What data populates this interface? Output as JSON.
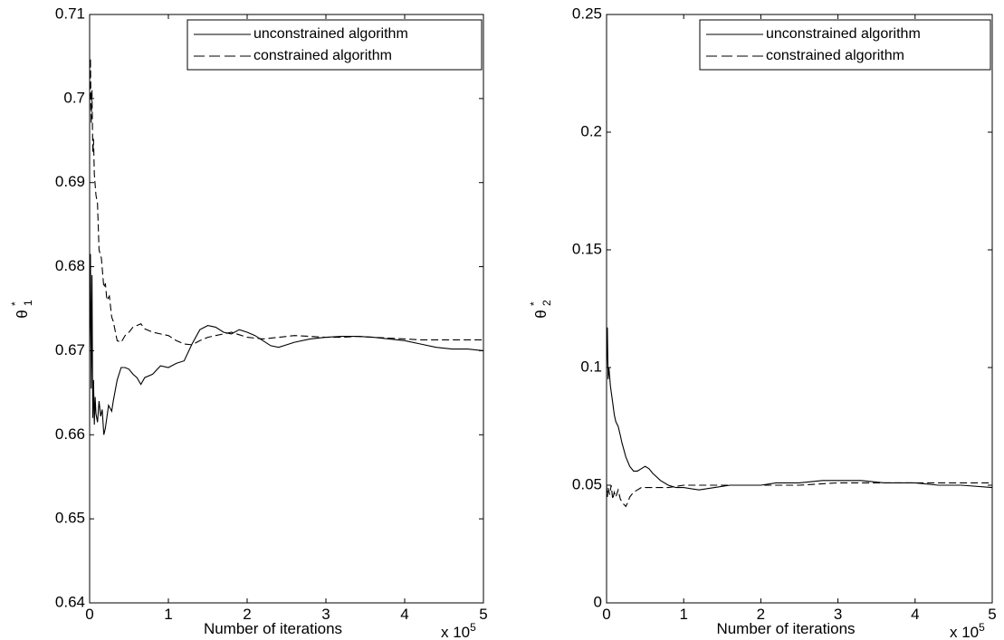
{
  "chart_data": [
    {
      "type": "line",
      "ylabel": "θ₁*",
      "ylabel_main": "θ",
      "ylabel_sub": "1",
      "ylabel_sup": "*",
      "xlabel": "Number of iterations",
      "x_multiplier": "x 10",
      "x_multiplier_exp": "5",
      "xlim": [
        0,
        5
      ],
      "ylim": [
        0.64,
        0.71
      ],
      "xticks": [
        "0",
        "1",
        "2",
        "3",
        "4",
        "5"
      ],
      "yticks": [
        "0.64",
        "0.65",
        "0.66",
        "0.67",
        "0.68",
        "0.69",
        "0.7",
        "0.71"
      ],
      "grid": false,
      "legend_position": "top-right",
      "series": [
        {
          "name": "unconstrained algorithm",
          "style": "solid",
          "x": [
            0,
            0.01,
            0.02,
            0.03,
            0.04,
            0.05,
            0.06,
            0.07,
            0.08,
            0.1,
            0.12,
            0.14,
            0.16,
            0.18,
            0.2,
            0.24,
            0.28,
            0.3,
            0.35,
            0.4,
            0.45,
            0.5,
            0.55,
            0.6,
            0.65,
            0.7,
            0.8,
            0.9,
            1.0,
            1.1,
            1.2,
            1.3,
            1.4,
            1.5,
            1.6,
            1.7,
            1.8,
            1.9,
            2.0,
            2.1,
            2.2,
            2.3,
            2.4,
            2.6,
            2.8,
            3.0,
            3.2,
            3.4,
            3.6,
            3.8,
            4.0,
            4.2,
            4.4,
            4.6,
            4.8,
            5.0
          ],
          "values": [
            0.6705,
            0.6815,
            0.6655,
            0.679,
            0.662,
            0.6665,
            0.6612,
            0.6645,
            0.6625,
            0.6615,
            0.664,
            0.6622,
            0.663,
            0.66,
            0.6608,
            0.6635,
            0.6628,
            0.664,
            0.6665,
            0.668,
            0.668,
            0.6678,
            0.6672,
            0.6668,
            0.666,
            0.6668,
            0.6672,
            0.6682,
            0.668,
            0.6685,
            0.6688,
            0.6708,
            0.6725,
            0.673,
            0.6728,
            0.6722,
            0.672,
            0.6725,
            0.6722,
            0.6718,
            0.6712,
            0.6706,
            0.6704,
            0.671,
            0.6714,
            0.6716,
            0.6717,
            0.6717,
            0.6716,
            0.6714,
            0.6712,
            0.6708,
            0.6704,
            0.6702,
            0.6702,
            0.67
          ]
        },
        {
          "name": "constrained algorithm",
          "style": "dashed",
          "x": [
            0,
            0.01,
            0.02,
            0.03,
            0.04,
            0.05,
            0.06,
            0.08,
            0.1,
            0.12,
            0.15,
            0.18,
            0.2,
            0.22,
            0.25,
            0.28,
            0.3,
            0.35,
            0.4,
            0.45,
            0.5,
            0.55,
            0.6,
            0.65,
            0.7,
            0.8,
            0.9,
            1.0,
            1.1,
            1.2,
            1.3,
            1.4,
            1.5,
            1.6,
            1.7,
            1.8,
            1.9,
            2.0,
            2.2,
            2.4,
            2.6,
            2.8,
            3.0,
            3.2,
            3.4,
            3.6,
            3.8,
            4.0,
            4.2,
            4.4,
            4.6,
            4.8,
            5.0
          ],
          "values": [
            0.6985,
            0.7048,
            0.697,
            0.701,
            0.6935,
            0.6952,
            0.691,
            0.6885,
            0.6875,
            0.682,
            0.681,
            0.6775,
            0.678,
            0.676,
            0.6765,
            0.674,
            0.6735,
            0.6712,
            0.671,
            0.6718,
            0.6722,
            0.6728,
            0.673,
            0.6732,
            0.6726,
            0.6722,
            0.672,
            0.6718,
            0.6712,
            0.6708,
            0.6707,
            0.6712,
            0.6716,
            0.6718,
            0.672,
            0.6722,
            0.6719,
            0.6716,
            0.6714,
            0.6716,
            0.6718,
            0.6717,
            0.6716,
            0.6716,
            0.6717,
            0.6716,
            0.6715,
            0.6714,
            0.6713,
            0.6713,
            0.6713,
            0.6713,
            0.6713
          ]
        }
      ]
    },
    {
      "type": "line",
      "ylabel": "θ₂*",
      "ylabel_main": "θ",
      "ylabel_sub": "2",
      "ylabel_sup": "*",
      "xlabel": "Number of iterations",
      "x_multiplier": "x 10",
      "x_multiplier_exp": "5",
      "xlim": [
        0,
        5
      ],
      "ylim": [
        0,
        0.25
      ],
      "xticks": [
        "0",
        "1",
        "2",
        "3",
        "4",
        "5"
      ],
      "yticks": [
        "0",
        "0.05",
        "0.1",
        "0.15",
        "0.2",
        "0.25"
      ],
      "grid": false,
      "legend_position": "top-right",
      "series": [
        {
          "name": "unconstrained algorithm",
          "style": "solid",
          "x": [
            0,
            0.01,
            0.02,
            0.03,
            0.05,
            0.08,
            0.1,
            0.12,
            0.15,
            0.18,
            0.2,
            0.25,
            0.3,
            0.35,
            0.4,
            0.45,
            0.5,
            0.55,
            0.6,
            0.7,
            0.8,
            0.9,
            1.0,
            1.2,
            1.4,
            1.6,
            1.8,
            2.0,
            2.2,
            2.5,
            2.8,
            3.0,
            3.3,
            3.6,
            4.0,
            4.3,
            4.6,
            5.0
          ],
          "values": [
            0.1,
            0.117,
            0.095,
            0.1,
            0.092,
            0.085,
            0.08,
            0.077,
            0.075,
            0.071,
            0.068,
            0.062,
            0.058,
            0.056,
            0.056,
            0.057,
            0.058,
            0.057,
            0.055,
            0.052,
            0.05,
            0.049,
            0.049,
            0.048,
            0.049,
            0.05,
            0.05,
            0.05,
            0.051,
            0.051,
            0.052,
            0.052,
            0.052,
            0.051,
            0.051,
            0.05,
            0.05,
            0.049
          ]
        },
        {
          "name": "constrained algorithm",
          "style": "dashed",
          "x": [
            0,
            0.01,
            0.02,
            0.04,
            0.06,
            0.08,
            0.1,
            0.12,
            0.15,
            0.18,
            0.2,
            0.22,
            0.25,
            0.28,
            0.3,
            0.35,
            0.4,
            0.45,
            0.5,
            0.6,
            0.8,
            1.0,
            1.5,
            2.0,
            2.5,
            3.0,
            3.5,
            4.0,
            4.5,
            5.0
          ],
          "values": [
            0.05,
            0.045,
            0.049,
            0.046,
            0.05,
            0.044,
            0.047,
            0.045,
            0.048,
            0.044,
            0.043,
            0.042,
            0.041,
            0.043,
            0.045,
            0.047,
            0.048,
            0.049,
            0.049,
            0.049,
            0.049,
            0.05,
            0.05,
            0.05,
            0.05,
            0.051,
            0.051,
            0.051,
            0.051,
            0.051
          ]
        }
      ]
    }
  ]
}
